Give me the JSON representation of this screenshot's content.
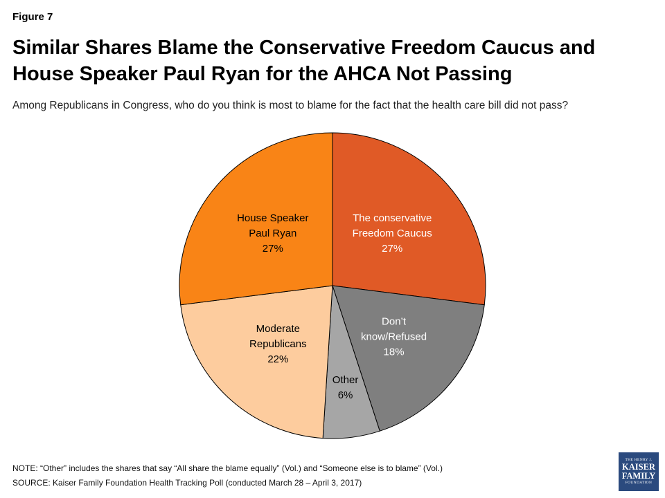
{
  "header": {
    "figure_label": "Figure 7",
    "title_line1": "Similar Shares Blame the Conservative Freedom Caucus and",
    "title_line2": "House Speaker Paul Ryan for the AHCA Not Passing",
    "subtitle": "Among Republicans in Congress, who do you think is most to blame for the fact that the health care bill did not pass?"
  },
  "chart_data": {
    "type": "pie",
    "unit": "%",
    "start_angle_deg": 0,
    "direction": "clockwise",
    "slices": [
      {
        "name": "The conservative Freedom Caucus",
        "label_lines": [
          "The conservative",
          "Freedom Caucus",
          "27%"
        ],
        "value": 27,
        "color": "#e05a26",
        "text_color": "#ffffff"
      },
      {
        "name": "Don’t know/Refused",
        "label_lines": [
          "Don’t",
          "know/Refused",
          "18%"
        ],
        "value": 18,
        "color": "#7f7f7f",
        "text_color": "#ffffff"
      },
      {
        "name": "Other",
        "label_lines": [
          "Other",
          "6%"
        ],
        "value": 6,
        "color": "#a6a6a6",
        "text_color": "#000000"
      },
      {
        "name": "Moderate Republicans",
        "label_lines": [
          "Moderate",
          "Republicans",
          "22%"
        ],
        "value": 22,
        "color": "#fdcc9e",
        "text_color": "#000000"
      },
      {
        "name": "House Speaker Paul Ryan",
        "label_lines": [
          "House Speaker",
          "Paul Ryan",
          "27%"
        ],
        "value": 27,
        "color": "#f98416",
        "text_color": "#000000"
      }
    ]
  },
  "footer": {
    "note": "NOTE: “Other” includes the shares that say “All share the blame equally” (Vol.) and “Someone else is to blame” (Vol.)",
    "source": "SOURCE: Kaiser Family Foundation Health Tracking Poll (conducted March 28 – April 3, 2017)",
    "logo_line1": "THE HENRY J.",
    "logo_line2": "KAISER",
    "logo_line3": "FAMILY",
    "logo_line4": "FOUNDATION",
    "logo_color": "#2b4a7e"
  }
}
